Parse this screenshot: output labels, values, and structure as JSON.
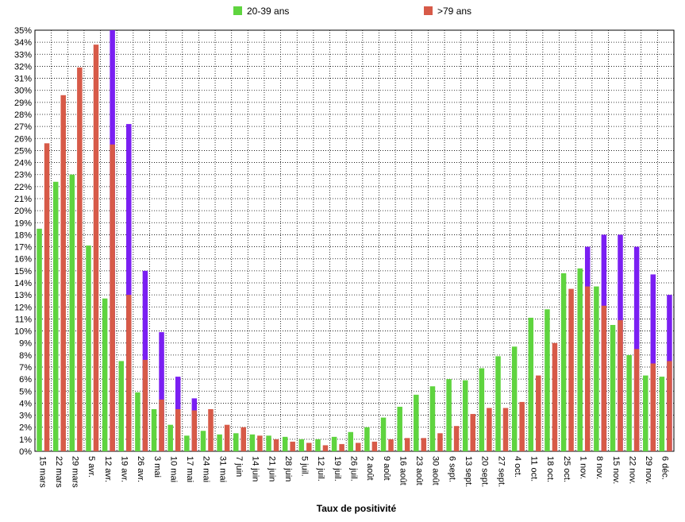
{
  "chart_data": {
    "type": "bar",
    "xlabel": "Taux de positivité",
    "ylabel": "",
    "ylim": [
      0,
      35
    ],
    "y_tick_suffix": "%",
    "grid": true,
    "legend_placement": "top",
    "categories": [
      "15 mars",
      "22 mars",
      "29 mars",
      "5 avr.",
      "12 avr.",
      "19 avr.",
      "26 avr.",
      "3 mai",
      "10 mai",
      "17 mai",
      "24 mai",
      "31 mai",
      "7 juin",
      "14 juin",
      "21 juin",
      "28 juin",
      "5 juil.",
      "12 juil.",
      "19 juil.",
      "26 juil.",
      "2 août",
      "9 août",
      "16 août",
      "23 août",
      "30 août",
      "6 sept.",
      "13 sept.",
      "20 sept.",
      "27 sept.",
      "4 oct.",
      "11 oct.",
      "18 oct.",
      "25 oct.",
      "1 nov.",
      "8 nov.",
      "15 nov.",
      "22 nov.",
      "29 nov.",
      "6 déc."
    ],
    "series": [
      {
        "name": "20-39 ans",
        "color": "#5fd43f",
        "values": [
          18.5,
          22.4,
          23.0,
          17.1,
          12.7,
          7.5,
          4.9,
          3.5,
          2.2,
          1.3,
          1.7,
          1.4,
          1.5,
          1.4,
          1.3,
          1.2,
          1.0,
          1.0,
          1.2,
          1.6,
          2.0,
          2.8,
          3.7,
          4.7,
          5.4,
          6.0,
          5.9,
          6.9,
          7.9,
          8.7,
          11.1,
          11.8,
          14.8,
          15.2,
          13.7,
          10.5,
          8.0,
          6.3,
          6.2
        ]
      },
      {
        "name": ">79 ans",
        "color": "#d75a48",
        "values": [
          25.6,
          29.6,
          31.9,
          33.8,
          25.5,
          13.0,
          7.6,
          4.3,
          3.5,
          3.4,
          3.5,
          2.2,
          2.0,
          1.3,
          1.0,
          0.8,
          0.7,
          0.5,
          0.6,
          0.7,
          0.8,
          1.0,
          1.1,
          1.1,
          1.5,
          2.1,
          3.1,
          3.6,
          3.6,
          4.1,
          6.3,
          9.0,
          13.5,
          13.7,
          12.1,
          10.9,
          8.5,
          7.3,
          7.5
        ],
        "overlay": {
          "color": "#7a1ff2",
          "values": [
            null,
            null,
            null,
            null,
            35.0,
            27.2,
            15.0,
            9.9,
            6.2,
            4.4,
            null,
            null,
            null,
            null,
            null,
            null,
            null,
            null,
            null,
            null,
            null,
            null,
            null,
            null,
            null,
            null,
            null,
            null,
            null,
            null,
            null,
            null,
            null,
            17.0,
            18.0,
            18.0,
            17.0,
            14.7,
            13.0
          ]
        }
      }
    ]
  }
}
